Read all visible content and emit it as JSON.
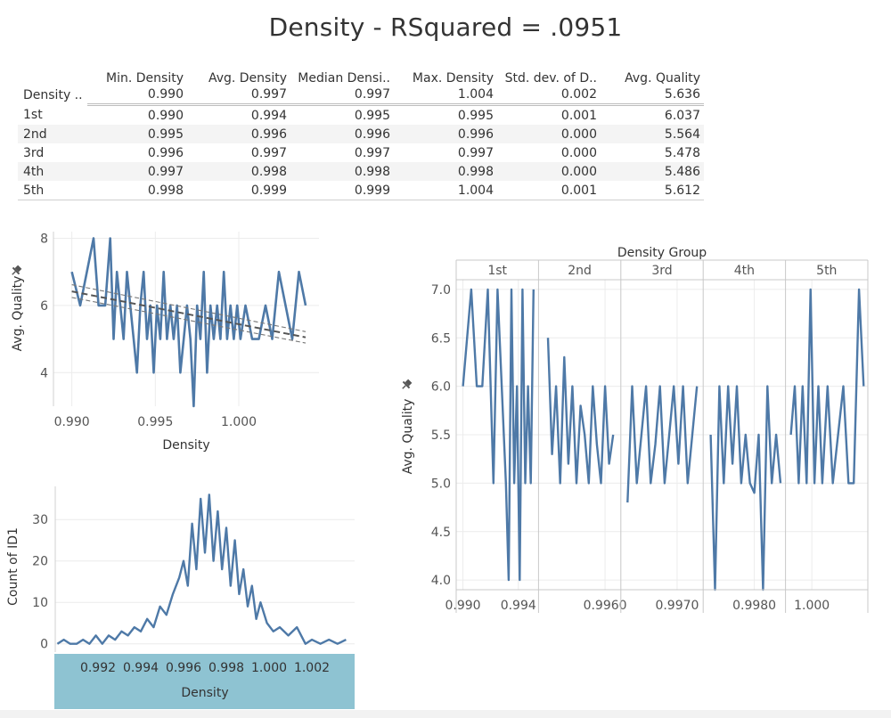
{
  "title": "Density  - RSquared = .0951",
  "summary_table": {
    "columns": [
      "Min. Density",
      "Avg. Density",
      "Median Densi..",
      "Max. Density",
      "Std. dev. of D..",
      "Avg. Quality"
    ],
    "total": {
      "label": "Density ..",
      "cells": [
        "0.990",
        "0.997",
        "0.997",
        "1.004",
        "0.002",
        "5.636"
      ]
    },
    "rows": [
      {
        "label": "1st",
        "cells": [
          "0.990",
          "0.994",
          "0.995",
          "0.995",
          "0.001",
          "6.037"
        ]
      },
      {
        "label": "2nd",
        "cells": [
          "0.995",
          "0.996",
          "0.996",
          "0.996",
          "0.000",
          "5.564"
        ]
      },
      {
        "label": "3rd",
        "cells": [
          "0.996",
          "0.997",
          "0.997",
          "0.997",
          "0.000",
          "5.478"
        ]
      },
      {
        "label": "4th",
        "cells": [
          "0.997",
          "0.998",
          "0.998",
          "0.998",
          "0.000",
          "5.486"
        ]
      },
      {
        "label": "5th",
        "cells": [
          "0.998",
          "0.999",
          "0.999",
          "1.004",
          "0.001",
          "5.612"
        ]
      }
    ]
  },
  "colors": {
    "line": "#4e79a7",
    "trend": "#777777",
    "axis_band": "#8ec3d2",
    "grid": "#ececec",
    "text": "#333333"
  },
  "chart_data": [
    {
      "type": "line",
      "xlabel": "Density",
      "ylabel": "Avg. Quality",
      "ylabel_icon": "pin-icon",
      "xlim": [
        0.9889,
        1.0048
      ],
      "ylim": [
        3.0,
        8.2
      ],
      "xticks": [
        0.99,
        0.995,
        1.0
      ],
      "xtick_labels": [
        "0.990",
        "0.995",
        "1.000"
      ],
      "yticks": [
        4,
        6,
        8
      ],
      "ytick_labels": [
        "4",
        "6",
        "8"
      ],
      "trend_line": {
        "x": [
          0.99,
          1.004
        ],
        "y": [
          6.42,
          5.05
        ]
      },
      "confidence_band": {
        "upper": [
          6.62,
          5.22
        ],
        "lower": [
          6.24,
          4.88
        ]
      },
      "series": [
        {
          "x": [
            0.99,
            0.9905,
            0.9909,
            0.9913,
            0.9916,
            0.992,
            0.9923,
            0.9925,
            0.9927,
            0.9929,
            0.9931,
            0.9933,
            0.9935,
            0.9937,
            0.9939,
            0.9941,
            0.9943,
            0.9945,
            0.9947,
            0.9949,
            0.9951,
            0.9953,
            0.9955,
            0.9957,
            0.9959,
            0.9961,
            0.9963,
            0.9965,
            0.9967,
            0.9969,
            0.9971,
            0.9973,
            0.9975,
            0.9977,
            0.9979,
            0.9981,
            0.9983,
            0.9985,
            0.9987,
            0.9989,
            0.9991,
            0.9993,
            0.9995,
            0.9997,
            0.9999,
            1.0001,
            1.0004,
            1.0008,
            1.0012,
            1.0016,
            1.002,
            1.0024,
            1.0028,
            1.0032,
            1.0036,
            1.004
          ],
          "y": [
            7.0,
            6.0,
            7.0,
            8.0,
            6.0,
            6.0,
            8.0,
            5.0,
            7.0,
            6.0,
            5.0,
            7.0,
            6.0,
            5.0,
            4.0,
            6.0,
            7.0,
            5.0,
            6.0,
            4.0,
            6.0,
            5.0,
            7.0,
            5.0,
            6.0,
            5.0,
            6.0,
            4.0,
            5.0,
            6.0,
            5.0,
            3.0,
            6.0,
            5.0,
            7.0,
            4.0,
            6.0,
            5.0,
            6.0,
            5.0,
            7.0,
            5.0,
            6.0,
            5.0,
            6.0,
            5.0,
            6.0,
            5.0,
            5.0,
            6.0,
            5.0,
            7.0,
            6.0,
            5.0,
            7.0,
            6.0
          ]
        }
      ]
    },
    {
      "type": "line",
      "xlabel": "Density",
      "ylabel": "Count of ID1",
      "xlim": [
        0.99,
        1.004
      ],
      "ylim": [
        -2,
        38
      ],
      "xticks": [
        0.992,
        0.994,
        0.996,
        0.998,
        1.0,
        1.002
      ],
      "xtick_labels": [
        "0.992",
        "0.994",
        "0.996",
        "0.998",
        "1.000",
        "1.002"
      ],
      "yticks": [
        0,
        10,
        20,
        30
      ],
      "ytick_labels": [
        "0",
        "10",
        "20",
        "30"
      ],
      "series": [
        {
          "x": [
            0.9901,
            0.9904,
            0.9907,
            0.991,
            0.9913,
            0.9916,
            0.9919,
            0.9922,
            0.9925,
            0.9928,
            0.9931,
            0.9934,
            0.9937,
            0.994,
            0.9943,
            0.9946,
            0.9949,
            0.9952,
            0.9955,
            0.9958,
            0.996,
            0.9962,
            0.9964,
            0.9966,
            0.9968,
            0.997,
            0.9972,
            0.9974,
            0.9976,
            0.9978,
            0.998,
            0.9982,
            0.9984,
            0.9986,
            0.9988,
            0.999,
            0.9992,
            0.9994,
            0.9996,
            0.9999,
            1.0002,
            1.0005,
            1.0009,
            1.0013,
            1.0017,
            1.002,
            1.0024,
            1.0028,
            1.0032,
            1.0036
          ],
          "y": [
            0,
            1,
            0,
            0,
            1,
            0,
            2,
            0,
            2,
            1,
            3,
            2,
            4,
            3,
            6,
            4,
            9,
            7,
            12,
            16,
            20,
            14,
            29,
            18,
            35,
            22,
            36,
            20,
            32,
            18,
            28,
            14,
            25,
            12,
            18,
            9,
            14,
            6,
            10,
            5,
            3,
            4,
            2,
            4,
            0,
            1,
            0,
            1,
            0,
            1
          ]
        }
      ]
    },
    {
      "type": "line",
      "title": "Density Group",
      "ylabel": "Avg. Quality",
      "ylabel_icon": "pin-icon",
      "ylim": [
        3.9,
        7.1
      ],
      "yticks": [
        4.0,
        4.5,
        5.0,
        5.5,
        6.0,
        6.5,
        7.0
      ],
      "ytick_labels": [
        "4.0",
        "4.5",
        "5.0",
        "5.5",
        "6.0",
        "6.5",
        "7.0"
      ],
      "panels": [
        {
          "label": "1st",
          "xlim": [
            0.9899,
            0.9952
          ],
          "xticks": [
            0.99,
            0.994
          ],
          "xtick_labels": [
            "0.990",
            "0.994"
          ],
          "x": [
            0.99,
            0.9906,
            0.991,
            0.9914,
            0.9918,
            0.9922,
            0.9925,
            0.9928,
            0.9931,
            0.9933,
            0.9935,
            0.9937,
            0.9939,
            0.9941,
            0.9943,
            0.9945,
            0.9947,
            0.9949,
            0.9951
          ],
          "y": [
            6.0,
            7.0,
            6.0,
            6.0,
            7.0,
            5.0,
            7.0,
            6.0,
            5.0,
            4.0,
            7.0,
            5.0,
            6.0,
            4.0,
            7.0,
            5.0,
            6.0,
            5.0,
            7.0
          ]
        },
        {
          "label": "2nd",
          "xlim": [
            0.99525,
            0.99615
          ],
          "xticks": [
            0.996
          ],
          "xtick_labels": [
            "0.9960"
          ],
          "x": [
            0.9953,
            0.99535,
            0.9954,
            0.99545,
            0.9955,
            0.99555,
            0.9956,
            0.99565,
            0.9957,
            0.99575,
            0.9958,
            0.99585,
            0.9959,
            0.99595,
            0.996,
            0.99605,
            0.9961
          ],
          "y": [
            6.5,
            5.3,
            6.0,
            5.0,
            6.3,
            5.2,
            6.0,
            5.0,
            5.8,
            5.5,
            5.0,
            6.0,
            5.4,
            5.0,
            6.0,
            5.2,
            5.5
          ]
        },
        {
          "label": "3rd",
          "xlim": [
            0.99623,
            0.99734
          ],
          "xticks": [
            0.997
          ],
          "xtick_labels": [
            "0.9970"
          ],
          "x": [
            0.99625,
            0.99632,
            0.99639,
            0.99646,
            0.99653,
            0.9966,
            0.99667,
            0.99674,
            0.99681,
            0.99688,
            0.99695,
            0.99702,
            0.99709,
            0.99716,
            0.99723,
            0.9973
          ],
          "y": [
            4.8,
            6.0,
            5.0,
            5.5,
            6.0,
            5.0,
            5.4,
            6.0,
            5.0,
            5.5,
            6.0,
            5.2,
            6.0,
            5.0,
            5.5,
            6.0
          ]
        },
        {
          "label": "4th",
          "xlim": [
            0.99737,
            0.99838
          ],
          "xticks": [
            0.998
          ],
          "xtick_labels": [
            "0.9980"
          ],
          "x": [
            0.9974,
            0.99746,
            0.99752,
            0.99758,
            0.99764,
            0.9977,
            0.99776,
            0.99782,
            0.99788,
            0.99794,
            0.998,
            0.99806,
            0.99812,
            0.99818,
            0.99824,
            0.9983,
            0.99836
          ],
          "y": [
            5.5,
            3.9,
            6.0,
            5.0,
            6.0,
            5.2,
            6.0,
            5.0,
            5.5,
            5.0,
            4.9,
            5.5,
            3.9,
            6.0,
            5.0,
            5.5,
            5.0
          ]
        },
        {
          "label": "5th",
          "xlim": [
            0.9984,
            1.004
          ],
          "xticks": [
            1.0
          ],
          "xtick_labels": [
            "1.000"
          ],
          "x": [
            0.9984,
            0.9987,
            0.999,
            0.9993,
            0.9996,
            0.9999,
            1.0002,
            1.0005,
            1.0008,
            1.0012,
            1.0016,
            1.002,
            1.0024,
            1.0028,
            1.0032,
            1.0036,
            1.00395
          ],
          "y": [
            5.5,
            6.0,
            5.0,
            6.0,
            5.0,
            7.0,
            5.0,
            6.0,
            5.0,
            6.0,
            5.0,
            5.5,
            6.0,
            5.0,
            5.0,
            7.0,
            6.0
          ]
        }
      ]
    }
  ]
}
